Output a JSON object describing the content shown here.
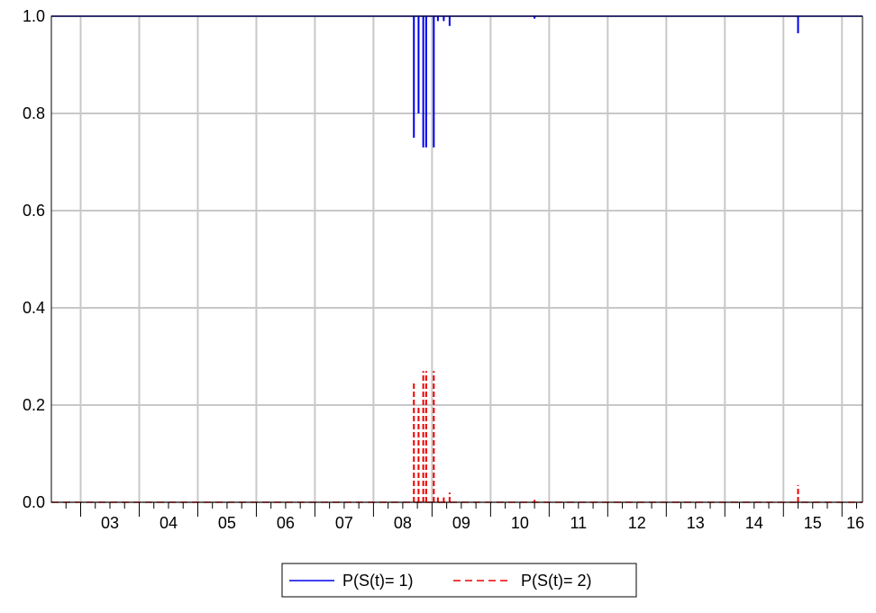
{
  "chart_data": {
    "type": "line",
    "title": "",
    "xlabel": "",
    "ylabel": "",
    "x_tick_labels": [
      "03",
      "04",
      "05",
      "06",
      "07",
      "08",
      "09",
      "10",
      "11",
      "12",
      "13",
      "14",
      "15",
      "16"
    ],
    "x_tick_years": [
      2003,
      2004,
      2005,
      2006,
      2007,
      2008,
      2009,
      2010,
      2011,
      2012,
      2013,
      2014,
      2015,
      2016
    ],
    "xlim": [
      2002.5,
      2016.35
    ],
    "y_tick_labels": [
      "0.0",
      "0.2",
      "0.4",
      "0.6",
      "0.8",
      "1.0"
    ],
    "y_ticks": [
      0.0,
      0.2,
      0.4,
      0.6,
      0.8,
      1.0
    ],
    "ylim": [
      0.0,
      1.0
    ],
    "grid": true,
    "legend_position": "bottom-center",
    "series": [
      {
        "name": "P(S(t)= 1)",
        "color": "#0000ee",
        "style": "solid",
        "baseline": 1.0,
        "spikes": [
          {
            "x": 2008.69,
            "y": 0.75
          },
          {
            "x": 2008.77,
            "y": 0.8
          },
          {
            "x": 2008.85,
            "y": 0.73
          },
          {
            "x": 2008.9,
            "y": 0.73
          },
          {
            "x": 2009.03,
            "y": 0.73
          },
          {
            "x": 2009.1,
            "y": 0.99
          },
          {
            "x": 2009.2,
            "y": 0.99
          },
          {
            "x": 2009.3,
            "y": 0.98
          },
          {
            "x": 2010.75,
            "y": 0.995
          },
          {
            "x": 2015.25,
            "y": 0.965
          }
        ]
      },
      {
        "name": "P(S(t)= 2)",
        "color": "#ee0000",
        "style": "dashed",
        "baseline": 0.0,
        "spikes": [
          {
            "x": 2008.69,
            "y": 0.25
          },
          {
            "x": 2008.77,
            "y": 0.2
          },
          {
            "x": 2008.85,
            "y": 0.27
          },
          {
            "x": 2008.9,
            "y": 0.27
          },
          {
            "x": 2009.03,
            "y": 0.27
          },
          {
            "x": 2009.1,
            "y": 0.01
          },
          {
            "x": 2009.2,
            "y": 0.01
          },
          {
            "x": 2009.3,
            "y": 0.02
          },
          {
            "x": 2010.75,
            "y": 0.005
          },
          {
            "x": 2015.25,
            "y": 0.035
          }
        ]
      }
    ]
  }
}
